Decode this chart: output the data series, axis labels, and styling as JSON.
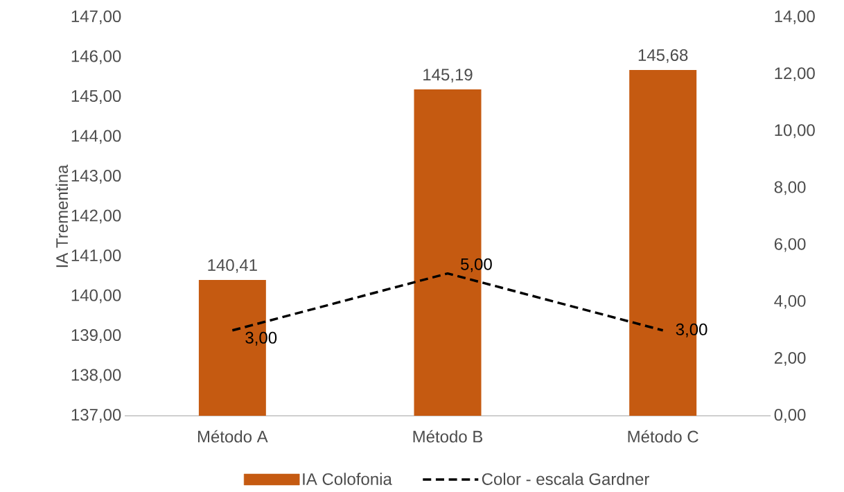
{
  "chart_data": {
    "type": "bar",
    "ylabel": "IA Trementina",
    "categories": [
      "Método A",
      "Método B",
      "Método C"
    ],
    "series": [
      {
        "name": "IA Colofonia",
        "color": "#c55a11",
        "values": [
          140.41,
          145.19,
          145.68
        ],
        "value_labels": [
          "140,41",
          "145,19",
          "145,68"
        ]
      },
      {
        "name": "Color - escala Gardner",
        "type": "line",
        "axis": "y2",
        "color": "#000000",
        "line_style": "dashed",
        "values": [
          3,
          5,
          3
        ],
        "value_labels": [
          "3,00",
          "5,00",
          "3,00"
        ]
      }
    ],
    "ylim": [
      137,
      147
    ],
    "yticks": [
      {
        "value": 137,
        "label": "137,00"
      },
      {
        "value": 138,
        "label": "138,00"
      },
      {
        "value": 139,
        "label": "139,00"
      },
      {
        "value": 140,
        "label": "140,00"
      },
      {
        "value": 141,
        "label": "141,00"
      },
      {
        "value": 142,
        "label": "142,00"
      },
      {
        "value": 143,
        "label": "143,00"
      },
      {
        "value": 144,
        "label": "144,00"
      },
      {
        "value": 145,
        "label": "145,00"
      },
      {
        "value": 146,
        "label": "146,00"
      },
      {
        "value": 147,
        "label": "147,00"
      }
    ],
    "y2lim": [
      0,
      14
    ],
    "y2ticks": [
      {
        "value": 0,
        "label": "0,00"
      },
      {
        "value": 2,
        "label": "2,00"
      },
      {
        "value": 4,
        "label": "4,00"
      },
      {
        "value": 6,
        "label": "6,00"
      },
      {
        "value": 8,
        "label": "8,00"
      },
      {
        "value": 10,
        "label": "10,00"
      },
      {
        "value": 12,
        "label": "12,00"
      },
      {
        "value": 14,
        "label": "14,00"
      }
    ],
    "legend": "bottom",
    "grid": false
  }
}
